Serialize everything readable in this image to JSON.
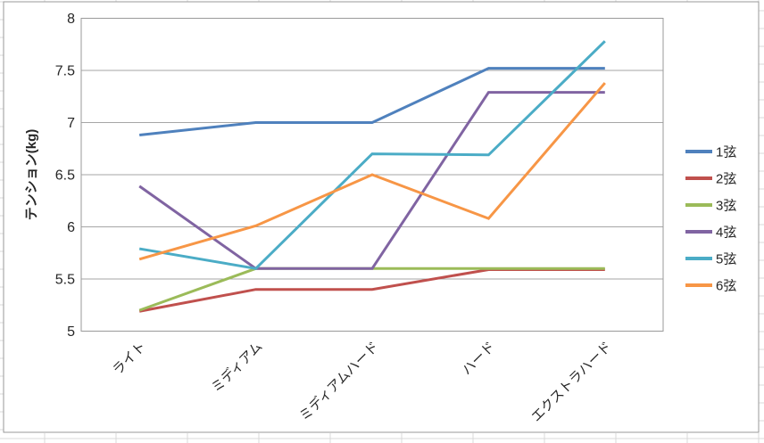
{
  "chart_data": {
    "type": "line",
    "title": "",
    "categories": [
      "ライト",
      "ミディアム",
      "ミディアムハード",
      "ハード",
      "エクストラハード"
    ],
    "series": [
      {
        "name": "1弦",
        "color": "#4F81BD",
        "values": [
          6.88,
          7.0,
          7.0,
          7.52,
          7.52
        ]
      },
      {
        "name": "2弦",
        "color": "#C0504D",
        "values": [
          5.19,
          5.4,
          5.4,
          5.59,
          5.59
        ]
      },
      {
        "name": "3弦",
        "color": "#9BBB59",
        "values": [
          5.2,
          5.6,
          5.6,
          5.6,
          5.6
        ]
      },
      {
        "name": "4弦",
        "color": "#8064A2",
        "values": [
          6.39,
          5.6,
          5.6,
          7.29,
          7.29
        ]
      },
      {
        "name": "5弦",
        "color": "#4BACC6",
        "values": [
          5.79,
          5.6,
          6.7,
          6.69,
          7.78
        ]
      },
      {
        "name": "6弦",
        "color": "#F79646",
        "values": [
          5.69,
          6.01,
          6.5,
          6.08,
          7.38
        ]
      }
    ],
    "xlabel": "",
    "ylabel": "テンション(kg)",
    "ylim": [
      5,
      8
    ],
    "ytick_step": 0.5,
    "ytick_labels_top_to_bottom": [
      "8",
      "7.5",
      "7",
      "6.5",
      "6",
      "5.5",
      "5"
    ],
    "grid": "horizontal",
    "legend_position": "right",
    "x_label_rotation_deg": 45
  },
  "colors": {
    "plot_border": "#9a9a9a",
    "gridline": "#a6a6a6",
    "chart_border": "#9a9a9a",
    "sheet_gridline": "#d9d9d9",
    "text": "#262626",
    "background": "#ffffff"
  }
}
